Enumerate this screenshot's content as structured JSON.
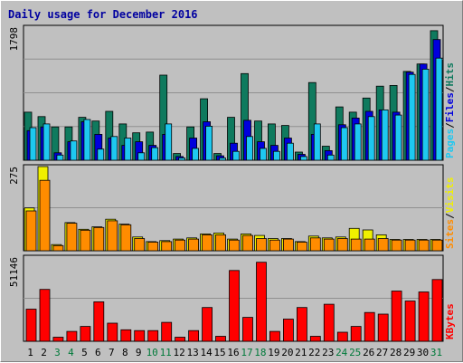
{
  "title": "Daily usage for December 2016",
  "colors": {
    "hits": "#0f7a5e",
    "files": "#0000dd",
    "pages": "#1ec8f0",
    "visits": "#f0f000",
    "sites": "#ff8c00",
    "kbytes": "#ff0000",
    "weekend_day_label": "#007a3a",
    "weekday_label": "#000000"
  },
  "chart_data": [
    {
      "type": "bar",
      "panel": "hits-files-pages",
      "ymax_label": "1798",
      "ylim": [
        0,
        1798
      ],
      "right_labels": [
        "Pages",
        "Files",
        "Hits"
      ],
      "x": [
        "1",
        "2",
        "3",
        "4",
        "5",
        "6",
        "7",
        "8",
        "9",
        "10",
        "11",
        "12",
        "13",
        "14",
        "15",
        "16",
        "17",
        "18",
        "19",
        "20",
        "21",
        "22",
        "23",
        "24",
        "25",
        "26",
        "27",
        "28",
        "29",
        "30",
        "31"
      ],
      "weekend_days": [
        "3",
        "4",
        "10",
        "11",
        "17",
        "18",
        "24",
        "25",
        "31"
      ],
      "series": [
        {
          "name": "Hits",
          "values": [
            650,
            590,
            450,
            450,
            580,
            530,
            660,
            490,
            370,
            380,
            1150,
            90,
            450,
            830,
            90,
            580,
            1170,
            530,
            490,
            470,
            110,
            1050,
            190,
            720,
            650,
            840,
            1000,
            1010,
            1200,
            1300,
            1750
          ]
        },
        {
          "name": "Files",
          "values": [
            400,
            450,
            100,
            250,
            520,
            350,
            300,
            200,
            250,
            200,
            350,
            50,
            300,
            520,
            60,
            230,
            540,
            250,
            200,
            300,
            80,
            350,
            130,
            480,
            570,
            660,
            680,
            650,
            1190,
            1300,
            1630
          ]
        },
        {
          "name": "Pages",
          "values": [
            440,
            490,
            70,
            260,
            550,
            150,
            320,
            300,
            100,
            170,
            490,
            30,
            160,
            460,
            30,
            120,
            320,
            160,
            120,
            230,
            50,
            490,
            70,
            440,
            490,
            590,
            680,
            610,
            1160,
            1230,
            1380
          ]
        }
      ]
    },
    {
      "type": "bar",
      "panel": "visits-sites",
      "ymax_label": "275",
      "ylim": [
        0,
        275
      ],
      "right_labels": [
        "Sites",
        "Visits"
      ],
      "x": [
        "1",
        "2",
        "3",
        "4",
        "5",
        "6",
        "7",
        "8",
        "9",
        "10",
        "11",
        "12",
        "13",
        "14",
        "15",
        "16",
        "17",
        "18",
        "19",
        "20",
        "21",
        "22",
        "23",
        "24",
        "25",
        "26",
        "27",
        "28",
        "29",
        "30",
        "31"
      ],
      "series": [
        {
          "name": "Visits",
          "values": [
            140,
            275,
            20,
            92,
            70,
            78,
            103,
            87,
            45,
            30,
            33,
            38,
            42,
            55,
            58,
            38,
            55,
            50,
            40,
            40,
            30,
            48,
            42,
            45,
            73,
            68,
            52,
            37,
            37,
            37,
            37
          ]
        },
        {
          "name": "Sites",
          "values": [
            130,
            230,
            17,
            90,
            67,
            76,
            98,
            85,
            40,
            28,
            30,
            35,
            38,
            52,
            52,
            35,
            50,
            40,
            35,
            38,
            28,
            42,
            38,
            40,
            38,
            38,
            40,
            35,
            35,
            35,
            35
          ]
        }
      ]
    },
    {
      "type": "bar",
      "panel": "kbytes",
      "ymax_label": "51146",
      "ylim": [
        0,
        51146
      ],
      "right_labels": [
        "KBytes"
      ],
      "x": [
        "1",
        "2",
        "3",
        "4",
        "5",
        "6",
        "7",
        "8",
        "9",
        "10",
        "11",
        "12",
        "13",
        "14",
        "15",
        "16",
        "17",
        "18",
        "19",
        "20",
        "21",
        "22",
        "23",
        "24",
        "25",
        "26",
        "27",
        "28",
        "29",
        "30",
        "31"
      ],
      "series": [
        {
          "name": "KBytes",
          "values": [
            19500,
            31500,
            2500,
            6000,
            9000,
            24000,
            11000,
            7000,
            6500,
            6500,
            11500,
            2500,
            6500,
            20500,
            3000,
            43000,
            14500,
            48000,
            6000,
            13500,
            20500,
            3000,
            22500,
            5500,
            9000,
            17500,
            16500,
            30500,
            24500,
            30000,
            37500
          ]
        }
      ]
    }
  ]
}
